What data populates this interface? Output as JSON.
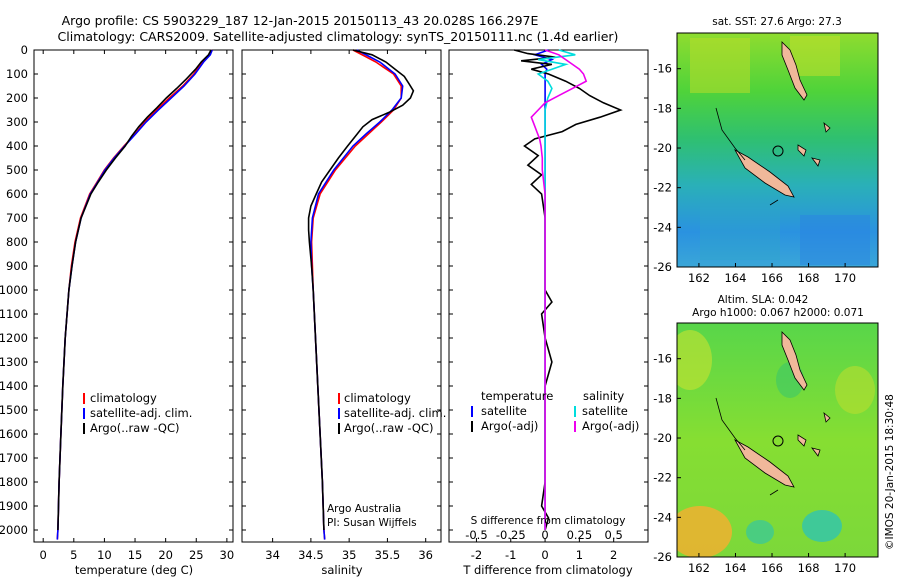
{
  "header": {
    "line1": "Argo profile: CS 5903229_187 12-Jan-2015 20150113_43 20.028S 166.297E",
    "line2": "Climatology: CARS2009. Satellite-adjusted climatology: synTS_20150111.nc (1.4d earlier)"
  },
  "colors": {
    "climatology": "#ff0000",
    "satellite": "#0000ff",
    "argo": "#000000",
    "sal_satellite": "#00dddd",
    "sal_argo": "#ee00ee"
  },
  "chart_data": [
    {
      "type": "line",
      "name": "temperature-profile",
      "xlabel": "temperature (deg C)",
      "ylabel": "",
      "xlim": [
        -1.5,
        31
      ],
      "ylim": [
        2050,
        0
      ],
      "x_ticks": [
        0,
        5,
        10,
        15,
        20,
        25,
        30
      ],
      "y_ticks": [
        0,
        100,
        200,
        300,
        400,
        500,
        600,
        700,
        800,
        900,
        1000,
        1100,
        1200,
        1300,
        1400,
        1500,
        1600,
        1700,
        1800,
        1900,
        2000
      ],
      "legend": [
        "climatology",
        "satellite-adj. clim.",
        "Argo(..raw -QC)"
      ],
      "series": [
        {
          "name": "climatology",
          "depth": [
            0,
            20,
            50,
            100,
            150,
            200,
            250,
            300,
            350,
            400,
            450,
            500,
            550,
            600,
            700,
            800,
            900,
            1000,
            1200,
            1400,
            1600,
            1800,
            2000,
            2040
          ],
          "values": [
            27.6,
            27.2,
            26.0,
            24.6,
            22.8,
            20.6,
            18.5,
            16.6,
            15.0,
            13.2,
            11.5,
            10.0,
            8.8,
            7.6,
            6.1,
            5.2,
            4.6,
            4.2,
            3.6,
            3.2,
            2.9,
            2.6,
            2.4,
            2.3
          ]
        },
        {
          "name": "satellite-adj. clim.",
          "depth": [
            0,
            20,
            50,
            100,
            150,
            200,
            250,
            300,
            350,
            400,
            450,
            500,
            550,
            600,
            700,
            800,
            900,
            1000,
            1200,
            1400,
            1600,
            1800,
            2000,
            2040
          ],
          "values": [
            27.6,
            27.3,
            26.2,
            24.8,
            23.0,
            20.9,
            18.8,
            16.8,
            15.1,
            13.3,
            11.6,
            10.1,
            8.9,
            7.7,
            6.2,
            5.3,
            4.7,
            4.2,
            3.6,
            3.2,
            2.9,
            2.6,
            2.4,
            2.3
          ]
        },
        {
          "name": "Argo(..raw -QC)",
          "depth": [
            0,
            20,
            50,
            80,
            120,
            160,
            200,
            240,
            280,
            320,
            360,
            400,
            450,
            500,
            550,
            600,
            700,
            800,
            900,
            1000,
            1200,
            1400,
            1600,
            1800,
            2000
          ],
          "values": [
            27.4,
            27.0,
            25.8,
            24.9,
            23.4,
            21.8,
            20.1,
            18.6,
            17.0,
            15.6,
            14.4,
            13.4,
            11.8,
            10.3,
            9.0,
            7.8,
            6.2,
            5.3,
            4.7,
            4.2,
            3.6,
            3.2,
            2.9,
            2.6,
            2.4
          ]
        }
      ]
    },
    {
      "type": "line",
      "name": "salinity-profile",
      "xlabel": "salinity",
      "xlim": [
        33.6,
        36.2
      ],
      "ylim": [
        2050,
        0
      ],
      "x_ticks": [
        34,
        34.5,
        35,
        35.5,
        36
      ],
      "legend": [
        "climatology",
        "satellite-adj. clim.",
        "Argo(..raw -QC)"
      ],
      "annotation": [
        "Argo Australia",
        "PI: Susan Wijffels"
      ],
      "series": [
        {
          "name": "climatology",
          "depth": [
            0,
            25,
            50,
            100,
            150,
            200,
            250,
            300,
            350,
            400,
            500,
            600,
            700,
            800,
            900,
            1000,
            1200,
            1400,
            1600,
            1800,
            2000,
            2040
          ],
          "values": [
            35.05,
            35.2,
            35.35,
            35.58,
            35.68,
            35.68,
            35.58,
            35.42,
            35.25,
            35.08,
            34.82,
            34.62,
            34.53,
            34.51,
            34.52,
            34.53,
            34.56,
            34.59,
            34.62,
            34.65,
            34.67,
            34.68
          ]
        },
        {
          "name": "satellite-adj. clim.",
          "depth": [
            0,
            25,
            50,
            100,
            150,
            200,
            250,
            300,
            350,
            400,
            500,
            600,
            700,
            800,
            900,
            1000,
            1200,
            1400,
            1600,
            1800,
            2000,
            2040
          ],
          "values": [
            35.1,
            35.25,
            35.4,
            35.6,
            35.7,
            35.68,
            35.56,
            35.4,
            35.22,
            35.05,
            34.8,
            34.6,
            34.52,
            34.5,
            34.51,
            34.53,
            34.56,
            34.59,
            34.62,
            34.65,
            34.67,
            34.68
          ]
        },
        {
          "name": "Argo(..raw -QC)",
          "depth": [
            0,
            20,
            50,
            80,
            110,
            140,
            170,
            200,
            230,
            260,
            290,
            320,
            360,
            400,
            450,
            500,
            550,
            600,
            650,
            700,
            750,
            800,
            900,
            1000,
            1200,
            1400,
            1600,
            1800,
            2000
          ],
          "values": [
            35.05,
            35.3,
            35.48,
            35.6,
            35.72,
            35.78,
            35.84,
            35.8,
            35.7,
            35.52,
            35.3,
            35.18,
            35.08,
            34.98,
            34.86,
            34.75,
            34.64,
            34.57,
            34.5,
            34.47,
            34.47,
            34.48,
            34.51,
            34.53,
            34.56,
            34.59,
            34.62,
            34.65,
            34.67
          ]
        }
      ]
    },
    {
      "type": "line",
      "name": "difference-profile",
      "xlabel": "T difference from climatology",
      "xlabel_top": "S difference from climatology",
      "t_lim": [
        -2.8,
        3.0
      ],
      "s_lim": [
        -0.7,
        0.75
      ],
      "t_ticks": [
        -2,
        -1,
        0,
        1,
        2
      ],
      "s_ticks": [
        -0.5,
        -0.25,
        0,
        0.25,
        0.5
      ],
      "s_tick_labels": [
        "-0.5",
        "-0.25",
        "0",
        "0.25",
        "0.5"
      ],
      "ylim": [
        2050,
        0
      ],
      "legend_t": {
        "title": "temperature",
        "items": [
          "satellite",
          "Argo(-adj)"
        ]
      },
      "legend_s": {
        "title": "salinity",
        "items": [
          "satellite",
          "Argo(-adj)"
        ]
      },
      "series": [
        {
          "name": "T satellite",
          "kind": "T",
          "depth": [
            0,
            20,
            40,
            60,
            80,
            100,
            140,
            200,
            300,
            400,
            500,
            600,
            800,
            1000,
            1500,
            2000
          ],
          "values": [
            0.1,
            -0.3,
            0.2,
            -0.1,
            0.05,
            0.0,
            0.0,
            0.0,
            0.0,
            0.0,
            0.0,
            0.0,
            0.0,
            0.0,
            0.0,
            0.0
          ]
        },
        {
          "name": "T Argo(-adj)",
          "kind": "T",
          "depth": [
            0,
            15,
            30,
            45,
            60,
            80,
            100,
            130,
            160,
            190,
            220,
            250,
            280,
            310,
            340,
            370,
            400,
            440,
            480,
            520,
            560,
            600,
            700,
            800,
            900,
            1000,
            1050,
            1100,
            1200,
            1300,
            1400,
            1500,
            1600,
            1800,
            1900,
            1950,
            2000
          ],
          "values": [
            -0.9,
            -0.5,
            0.3,
            -0.7,
            0.2,
            -0.4,
            0.1,
            0.6,
            1.0,
            1.3,
            1.7,
            2.2,
            1.6,
            0.9,
            0.5,
            -0.3,
            -0.6,
            -0.2,
            -0.5,
            -0.1,
            -0.4,
            -0.1,
            0.0,
            0.0,
            0.0,
            0.0,
            0.2,
            -0.1,
            0.0,
            0.2,
            0.0,
            0.0,
            0.0,
            0.0,
            -0.1,
            0.1,
            0.0
          ]
        },
        {
          "name": "S satellite",
          "kind": "S",
          "depth": [
            0,
            20,
            40,
            60,
            80,
            100,
            130,
            160,
            200,
            250,
            300,
            400,
            500,
            600,
            700,
            800,
            1000,
            1500,
            2000
          ],
          "values": [
            0.1,
            0.22,
            -0.05,
            0.15,
            0.05,
            -0.05,
            0.02,
            0.05,
            0.02,
            0.0,
            0.0,
            0.0,
            0.0,
            0.0,
            0.0,
            0.0,
            0.0,
            0.0,
            0.0
          ]
        },
        {
          "name": "S Argo(-adj)",
          "kind": "S",
          "depth": [
            0,
            20,
            40,
            60,
            80,
            100,
            130,
            160,
            190,
            220,
            250,
            280,
            310,
            340,
            370,
            400,
            450,
            500,
            550,
            600,
            700,
            800,
            900,
            1000,
            1200,
            1400,
            1600,
            1800,
            2000
          ],
          "values": [
            0.0,
            0.1,
            0.15,
            0.2,
            0.25,
            0.28,
            0.3,
            0.2,
            0.1,
            0.0,
            -0.05,
            -0.1,
            -0.08,
            -0.06,
            -0.04,
            -0.03,
            -0.02,
            -0.02,
            -0.01,
            0.0,
            0.0,
            0.0,
            0.0,
            0.0,
            0.0,
            0.0,
            0.0,
            0.0,
            0.0
          ]
        }
      ]
    },
    {
      "type": "heatmap",
      "name": "sst-map",
      "title": "sat. SST: 27.6 Argo: 27.3",
      "x_ticks": [
        162,
        164,
        166,
        168,
        170
      ],
      "y_ticks": [
        -16,
        -18,
        -20,
        -22,
        -24,
        -26
      ],
      "xlim": [
        160.8,
        171.8
      ],
      "ylim": [
        -26,
        -14.2
      ],
      "argo_position": {
        "lon": 166.297,
        "lat": -20.028
      }
    },
    {
      "type": "heatmap",
      "name": "sla-map",
      "title_lines": [
        "Altim. SLA: 0.042",
        "Argo h1000: 0.067 h2000: 0.071"
      ],
      "x_ticks": [
        162,
        164,
        166,
        168,
        170
      ],
      "y_ticks": [
        -16,
        -18,
        -20,
        -22,
        -24,
        -26
      ],
      "xlim": [
        160.8,
        171.8
      ],
      "ylim": [
        -26,
        -14.2
      ],
      "argo_position": {
        "lon": 166.297,
        "lat": -20.028
      }
    }
  ],
  "credit": "©IMOS 20-Jan-2015 18:30:48"
}
